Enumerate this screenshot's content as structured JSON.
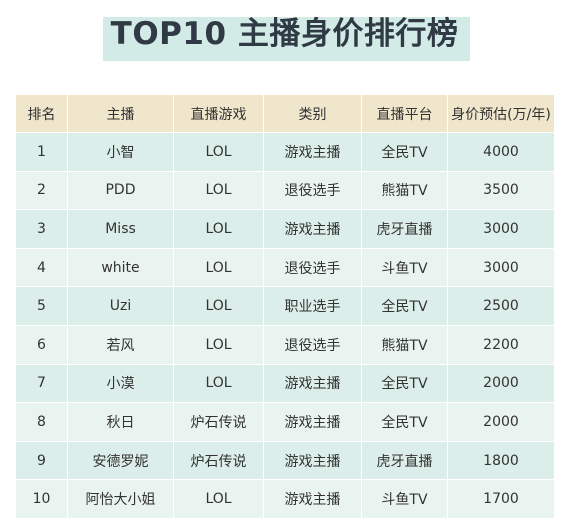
{
  "title": "TOP10 主播身价排行榜",
  "headers": {
    "rank": "排名",
    "streamer": "主播",
    "game": "直播游戏",
    "category": "类别",
    "platform": "直播平台",
    "value": "身价预估(万/年)"
  },
  "rows": [
    {
      "rank": "1",
      "streamer": "小智",
      "game": "LOL",
      "category": "游戏主播",
      "platform": "全民TV",
      "value": "4000"
    },
    {
      "rank": "2",
      "streamer": "PDD",
      "game": "LOL",
      "category": "退役选手",
      "platform": "熊猫TV",
      "value": "3500"
    },
    {
      "rank": "3",
      "streamer": "Miss",
      "game": "LOL",
      "category": "游戏主播",
      "platform": "虎牙直播",
      "value": "3000"
    },
    {
      "rank": "4",
      "streamer": "white",
      "game": "LOL",
      "category": "退役选手",
      "platform": "斗鱼TV",
      "value": "3000"
    },
    {
      "rank": "5",
      "streamer": "Uzi",
      "game": "LOL",
      "category": "职业选手",
      "platform": "全民TV",
      "value": "2500"
    },
    {
      "rank": "6",
      "streamer": "若风",
      "game": "LOL",
      "category": "退役选手",
      "platform": "熊猫TV",
      "value": "2200"
    },
    {
      "rank": "7",
      "streamer": "小漠",
      "game": "LOL",
      "category": "游戏主播",
      "platform": "全民TV",
      "value": "2000"
    },
    {
      "rank": "8",
      "streamer": "秋日",
      "game": "炉石传说",
      "category": "游戏主播",
      "platform": "全民TV",
      "value": "2000"
    },
    {
      "rank": "9",
      "streamer": "安德罗妮",
      "game": "炉石传说",
      "category": "游戏主播",
      "platform": "虎牙直播",
      "value": "1800"
    },
    {
      "rank": "10",
      "streamer": "阿怡大小姐",
      "game": "LOL",
      "category": "游戏主播",
      "platform": "斗鱼TV",
      "value": "1700"
    }
  ],
  "colors": {
    "title_highlight": "#d3ebe6",
    "header_bg": "#efe6cc",
    "row_bg_a": "#dceee9",
    "row_bg_b": "#e9f4f1"
  }
}
